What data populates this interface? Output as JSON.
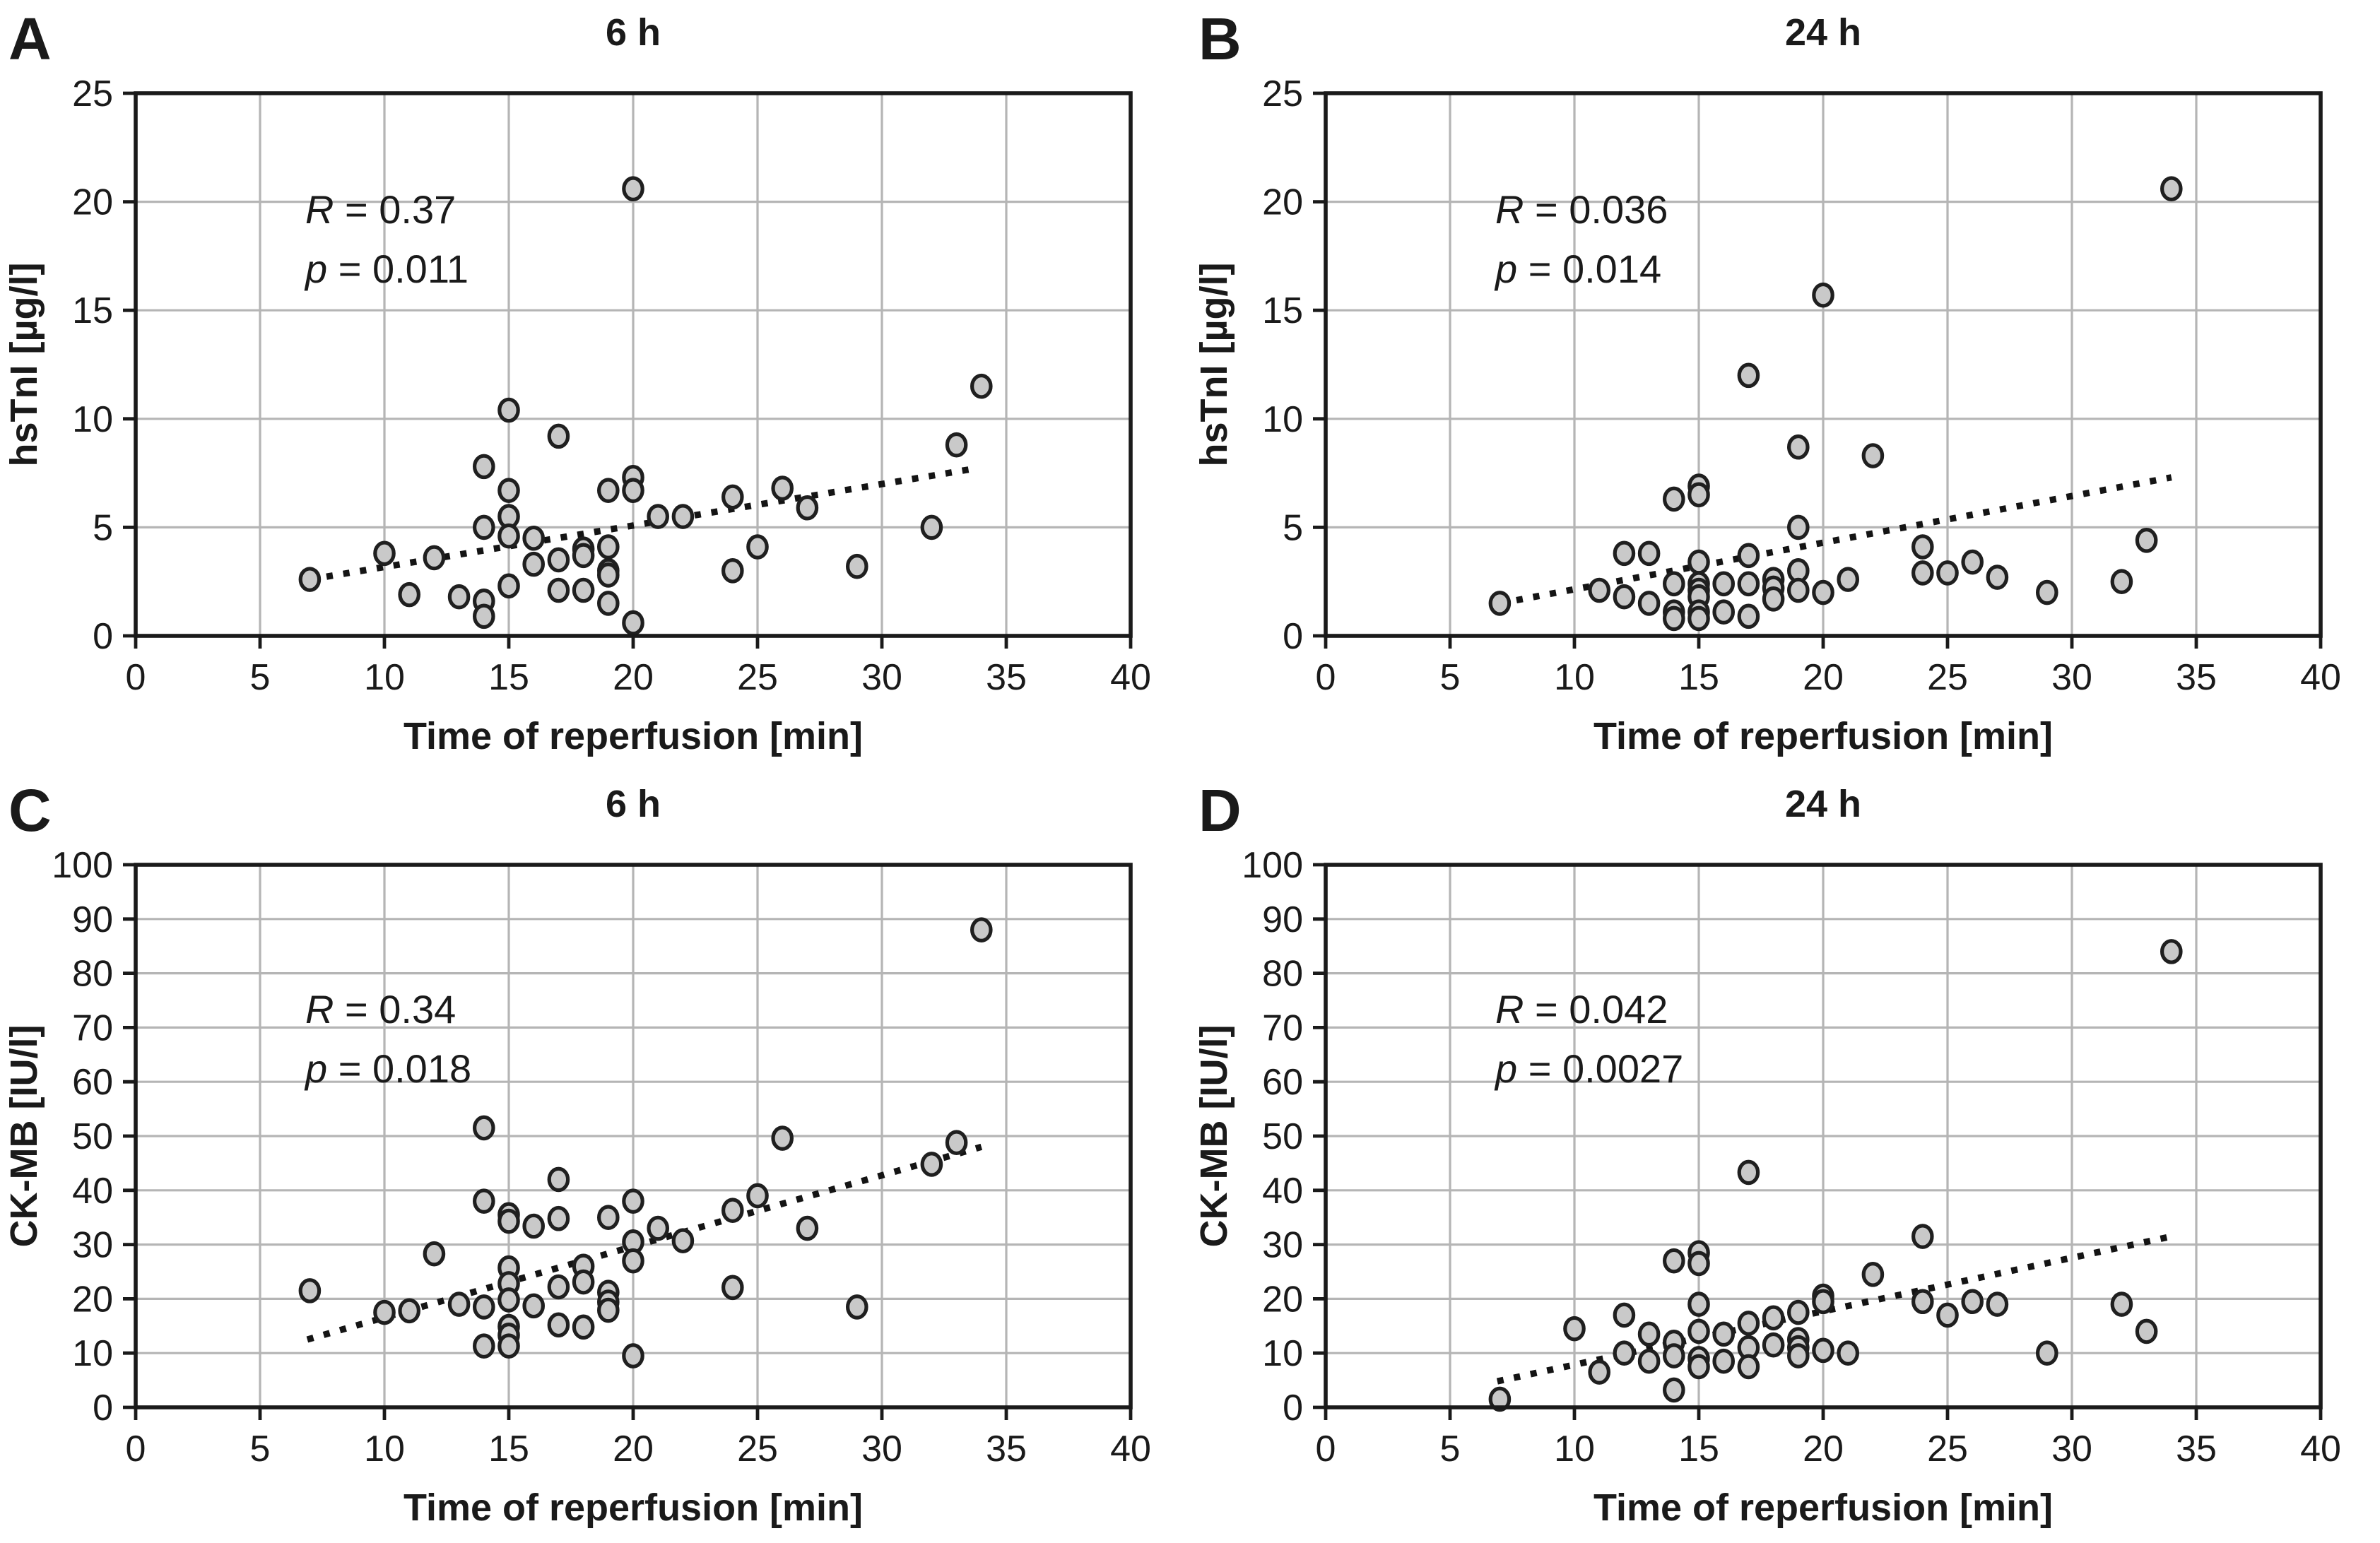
{
  "figure": {
    "background": "#ffffff",
    "colors": {
      "marker_fill": "#c9c9c9",
      "marker_stroke": "#1f1f1f",
      "grid": "#b5b5b5",
      "axis": "#1a1a1a",
      "trend": "#141414",
      "text": "#1a1a1a"
    }
  },
  "chart_data": [
    {
      "type": "scatter",
      "panel_label": "A",
      "title": "6 h",
      "annotation": {
        "r": "R = 0.37",
        "p": "p = 0.011"
      },
      "xlabel": "Time of reperfusion [min]",
      "ylabel": "hsTnI [µg/l]",
      "xlim": [
        0,
        40
      ],
      "ylim": [
        0,
        25
      ],
      "xticks": [
        0,
        5,
        10,
        15,
        20,
        25,
        30,
        35,
        40
      ],
      "yticks": [
        0,
        5,
        10,
        15,
        20,
        25
      ],
      "grid": true,
      "legend": "none",
      "trend": {
        "x1": 7,
        "y1": 2.6,
        "x2": 33.7,
        "y2": 7.7
      },
      "points": [
        [
          7,
          2.6
        ],
        [
          10,
          3.8
        ],
        [
          11,
          1.9
        ],
        [
          12,
          3.6
        ],
        [
          13,
          1.8
        ],
        [
          14,
          7.8
        ],
        [
          14,
          5.0
        ],
        [
          14,
          1.6
        ],
        [
          14,
          0.9
        ],
        [
          15,
          10.4
        ],
        [
          15,
          6.7
        ],
        [
          15,
          5.5
        ],
        [
          15,
          4.6
        ],
        [
          15,
          2.3
        ],
        [
          16,
          4.5
        ],
        [
          16,
          3.3
        ],
        [
          17,
          9.2
        ],
        [
          17,
          3.5
        ],
        [
          17,
          2.1
        ],
        [
          18,
          4.0
        ],
        [
          18,
          3.7
        ],
        [
          18,
          2.1
        ],
        [
          19,
          6.7
        ],
        [
          19,
          4.1
        ],
        [
          19,
          3.0
        ],
        [
          19,
          2.8
        ],
        [
          19,
          1.5
        ],
        [
          20,
          20.6
        ],
        [
          20,
          7.3
        ],
        [
          20,
          6.7
        ],
        [
          20,
          0.6
        ],
        [
          21,
          5.5
        ],
        [
          22,
          5.5
        ],
        [
          24,
          6.4
        ],
        [
          24,
          3.0
        ],
        [
          25,
          4.1
        ],
        [
          26,
          6.8
        ],
        [
          27,
          5.9
        ],
        [
          29,
          3.2
        ],
        [
          32,
          5.0
        ],
        [
          33,
          8.8
        ],
        [
          34,
          11.5
        ]
      ]
    },
    {
      "type": "scatter",
      "panel_label": "B",
      "title": "24 h",
      "annotation": {
        "r": "R = 0.036",
        "p": "p = 0.014"
      },
      "xlabel": "Time of reperfusion [min]",
      "ylabel": "hsTnI [µg/l]",
      "xlim": [
        0,
        40
      ],
      "ylim": [
        0,
        25
      ],
      "xticks": [
        0,
        5,
        10,
        15,
        20,
        25,
        30,
        35,
        40
      ],
      "yticks": [
        0,
        5,
        10,
        15,
        20,
        25
      ],
      "grid": true,
      "legend": "none",
      "trend": {
        "x1": 7,
        "y1": 1.5,
        "x2": 34,
        "y2": 7.3
      },
      "points": [
        [
          7,
          1.5
        ],
        [
          11,
          2.1
        ],
        [
          12,
          3.8
        ],
        [
          12,
          1.8
        ],
        [
          13,
          3.8
        ],
        [
          13,
          1.5
        ],
        [
          14,
          6.3
        ],
        [
          14,
          2.4
        ],
        [
          14,
          1.1
        ],
        [
          14,
          0.8
        ],
        [
          15,
          6.9
        ],
        [
          15,
          6.5
        ],
        [
          15,
          3.4
        ],
        [
          15,
          2.4
        ],
        [
          15,
          2.1
        ],
        [
          15,
          1.8
        ],
        [
          15,
          1.1
        ],
        [
          15,
          0.8
        ],
        [
          16,
          2.4
        ],
        [
          16,
          1.1
        ],
        [
          17,
          12.0
        ],
        [
          17,
          3.7
        ],
        [
          17,
          2.4
        ],
        [
          17,
          0.9
        ],
        [
          18,
          2.6
        ],
        [
          18,
          2.2
        ],
        [
          18,
          1.7
        ],
        [
          19,
          8.7
        ],
        [
          19,
          5.0
        ],
        [
          19,
          3.0
        ],
        [
          19,
          2.1
        ],
        [
          20,
          15.7
        ],
        [
          20,
          2.0
        ],
        [
          21,
          2.6
        ],
        [
          22,
          8.3
        ],
        [
          24,
          4.1
        ],
        [
          24,
          2.9
        ],
        [
          25,
          2.9
        ],
        [
          26,
          3.4
        ],
        [
          27,
          2.7
        ],
        [
          29,
          2.0
        ],
        [
          32,
          2.5
        ],
        [
          33,
          4.4
        ],
        [
          34,
          20.6
        ]
      ]
    },
    {
      "type": "scatter",
      "panel_label": "C",
      "title": "6 h",
      "annotation": {
        "r": "R = 0.34",
        "p": "p = 0.018"
      },
      "xlabel": "Time of reperfusion [min]",
      "ylabel": "CK-MB [IU/l]",
      "xlim": [
        0,
        40
      ],
      "ylim": [
        0,
        100
      ],
      "xticks": [
        0,
        5,
        10,
        15,
        20,
        25,
        30,
        35,
        40
      ],
      "yticks": [
        0,
        10,
        20,
        30,
        40,
        50,
        60,
        70,
        80,
        90,
        100
      ],
      "grid": true,
      "legend": "none",
      "trend": {
        "x1": 6.9,
        "y1": 12.5,
        "x2": 34,
        "y2": 48
      },
      "points": [
        [
          7,
          21.5
        ],
        [
          10,
          17.5
        ],
        [
          11,
          17.8
        ],
        [
          12,
          28.3
        ],
        [
          13,
          19
        ],
        [
          14,
          51.5
        ],
        [
          14,
          38
        ],
        [
          14,
          18.5
        ],
        [
          14,
          11.3
        ],
        [
          15,
          35.5
        ],
        [
          15,
          34.3
        ],
        [
          15,
          25.7
        ],
        [
          15,
          22.8
        ],
        [
          15,
          19.8
        ],
        [
          15,
          14.9
        ],
        [
          15,
          13.3
        ],
        [
          15,
          11.3
        ],
        [
          16,
          33.4
        ],
        [
          16,
          18.7
        ],
        [
          17,
          42
        ],
        [
          17,
          34.8
        ],
        [
          17,
          22.2
        ],
        [
          17,
          15.2
        ],
        [
          18,
          26
        ],
        [
          18,
          23.1
        ],
        [
          18,
          14.8
        ],
        [
          19,
          35
        ],
        [
          19,
          21.2
        ],
        [
          19,
          19.4
        ],
        [
          19,
          17.9
        ],
        [
          20,
          38
        ],
        [
          20,
          30.5
        ],
        [
          20,
          27
        ],
        [
          20,
          9.5
        ],
        [
          21,
          33
        ],
        [
          22,
          30.7
        ],
        [
          24,
          36.3
        ],
        [
          24,
          22.1
        ],
        [
          25,
          39
        ],
        [
          26,
          49.6
        ],
        [
          27,
          33
        ],
        [
          29,
          18.5
        ],
        [
          32,
          44.8
        ],
        [
          33,
          48.8
        ],
        [
          34,
          88
        ]
      ]
    },
    {
      "type": "scatter",
      "panel_label": "D",
      "title": "24 h",
      "annotation": {
        "r": "R = 0.042",
        "p": "p = 0.0027"
      },
      "xlabel": "Time of reperfusion [min]",
      "ylabel": "CK-MB [IU/l]",
      "xlim": [
        0,
        40
      ],
      "ylim": [
        0,
        100
      ],
      "xticks": [
        0,
        5,
        10,
        15,
        20,
        25,
        30,
        35,
        40
      ],
      "yticks": [
        0,
        10,
        20,
        30,
        40,
        50,
        60,
        70,
        80,
        90,
        100
      ],
      "grid": true,
      "legend": "none",
      "trend": {
        "x1": 6.9,
        "y1": 4.8,
        "x2": 34,
        "y2": 31.5
      },
      "points": [
        [
          7,
          1.5
        ],
        [
          10,
          14.5
        ],
        [
          11,
          6.5
        ],
        [
          12,
          17
        ],
        [
          12,
          10
        ],
        [
          13,
          13.5
        ],
        [
          13,
          8.5
        ],
        [
          14,
          27
        ],
        [
          14,
          12
        ],
        [
          14,
          9.5
        ],
        [
          14,
          3.2
        ],
        [
          15,
          28.5
        ],
        [
          15,
          26.5
        ],
        [
          15,
          19
        ],
        [
          15,
          14
        ],
        [
          15,
          9
        ],
        [
          15,
          7.5
        ],
        [
          16,
          13.5
        ],
        [
          16,
          8.5
        ],
        [
          17,
          43.3
        ],
        [
          17,
          15.5
        ],
        [
          17,
          11
        ],
        [
          17,
          7.5
        ],
        [
          18,
          16.5
        ],
        [
          18,
          11.5
        ],
        [
          19,
          17.5
        ],
        [
          19,
          12.5
        ],
        [
          19,
          11
        ],
        [
          19,
          9.5
        ],
        [
          20,
          20.5
        ],
        [
          20,
          19.5
        ],
        [
          20,
          10.5
        ],
        [
          21,
          10
        ],
        [
          22,
          24.5
        ],
        [
          24,
          31.5
        ],
        [
          24,
          19.5
        ],
        [
          25,
          17
        ],
        [
          26,
          19.5
        ],
        [
          27,
          19
        ],
        [
          29,
          10
        ],
        [
          32,
          19
        ],
        [
          33,
          14
        ],
        [
          34,
          84
        ]
      ]
    }
  ]
}
